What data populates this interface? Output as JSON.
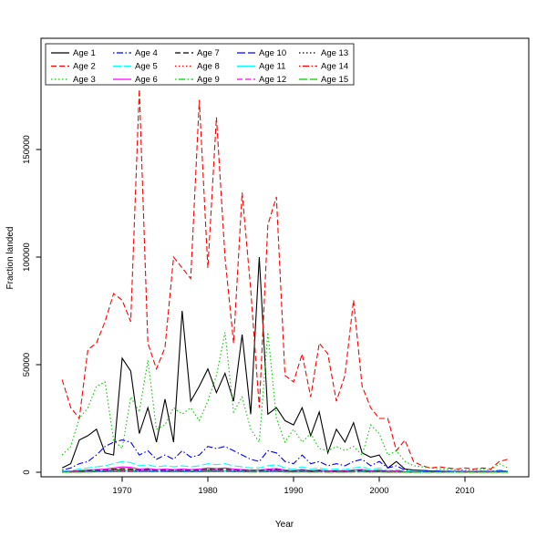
{
  "chart_data": {
    "type": "line",
    "xlabel": "Year",
    "ylabel": "Fraction landed",
    "xticks": [
      1970,
      1980,
      1990,
      2000,
      2010
    ],
    "yticks": [
      0,
      50000,
      100000,
      150000
    ],
    "xlim": [
      1961,
      2017
    ],
    "ylim": [
      0,
      201000
    ],
    "grid": false,
    "legend_position": "top-left",
    "x": [
      1963,
      1964,
      1965,
      1966,
      1967,
      1968,
      1969,
      1970,
      1971,
      1972,
      1973,
      1974,
      1975,
      1976,
      1977,
      1978,
      1979,
      1980,
      1981,
      1982,
      1983,
      1984,
      1985,
      1986,
      1987,
      1988,
      1989,
      1990,
      1991,
      1992,
      1993,
      1994,
      1995,
      1996,
      1997,
      1998,
      1999,
      2000,
      2001,
      2002,
      2003,
      2004,
      2005,
      2006,
      2007,
      2008,
      2009,
      2010,
      2011,
      2012,
      2013,
      2014,
      2015
    ],
    "series": [
      {
        "name": "Age 1",
        "color": "#000000",
        "dash": "",
        "values": [
          2000,
          4000,
          15000,
          17000,
          20000,
          9000,
          8000,
          53000,
          47000,
          18000,
          30000,
          14000,
          34000,
          14000,
          75000,
          33000,
          40000,
          48000,
          37000,
          46000,
          33000,
          64000,
          27000,
          100000,
          27000,
          30000,
          24000,
          22000,
          30000,
          17000,
          28000,
          9000,
          20000,
          14000,
          23000,
          9000,
          7000,
          8000,
          2000,
          5000,
          1500,
          1000,
          800,
          600,
          500,
          400,
          400,
          300,
          300,
          400,
          300,
          500,
          400
        ]
      },
      {
        "name": "Age 2",
        "color": "#FF0000",
        "dash": "6,3",
        "values": [
          43000,
          30000,
          25000,
          57000,
          60000,
          70000,
          83000,
          80000,
          70000,
          178000,
          60000,
          48000,
          58000,
          100000,
          95000,
          90000,
          173000,
          95000,
          165000,
          100000,
          60000,
          130000,
          85000,
          30000,
          115000,
          128000,
          45000,
          42000,
          55000,
          35000,
          60000,
          55000,
          33000,
          45000,
          80000,
          40000,
          30000,
          25000,
          25000,
          10000,
          15000,
          5000,
          3000,
          2000,
          2500,
          2000,
          1500,
          2000,
          1500,
          2000,
          1500,
          5000,
          6000
        ]
      },
      {
        "name": "Age 3",
        "color": "#00CD00",
        "dash": "1.5,2.5",
        "values": [
          8000,
          12000,
          25000,
          30000,
          40000,
          42000,
          15000,
          11000,
          35000,
          28000,
          52000,
          20000,
          22000,
          30000,
          27000,
          30000,
          24000,
          33000,
          45000,
          65000,
          28000,
          35000,
          20000,
          14000,
          65000,
          25000,
          14000,
          20000,
          14000,
          18000,
          11000,
          10000,
          12000,
          10000,
          12000,
          8000,
          22000,
          18000,
          8000,
          10000,
          5000,
          3000,
          2500,
          2000,
          1500,
          1500,
          1200,
          1000,
          1000,
          1500,
          1000,
          4000,
          2000
        ]
      },
      {
        "name": "Age 4",
        "color": "#0000FF",
        "dash": "1.5,2.5,7,2.5",
        "values": [
          1000,
          2000,
          4000,
          5000,
          8000,
          12000,
          14000,
          15000,
          14000,
          8000,
          10000,
          6000,
          8000,
          6000,
          10000,
          7000,
          8000,
          12000,
          11000,
          12000,
          10000,
          8000,
          6000,
          5000,
          10000,
          9000,
          5000,
          4000,
          8000,
          4000,
          5000,
          3000,
          4000,
          3000,
          5000,
          6000,
          3000,
          5000,
          2000,
          3000,
          1000,
          1000,
          800,
          600,
          500,
          500,
          400,
          400,
          300,
          500,
          400,
          800,
          600
        ]
      },
      {
        "name": "Age 5",
        "color": "#00FFFF",
        "dash": "9,3",
        "values": [
          500,
          800,
          1500,
          2000,
          2500,
          3000,
          4000,
          5000,
          4500,
          3000,
          3500,
          2500,
          3000,
          2500,
          3000,
          2500,
          3000,
          4000,
          3500,
          4000,
          3000,
          2500,
          2000,
          2000,
          3000,
          3500,
          2000,
          1500,
          2500,
          1500,
          2000,
          1200,
          1500,
          1200,
          2000,
          2500,
          1200,
          2000,
          800,
          1200,
          500,
          400,
          300,
          300,
          250,
          250,
          200,
          200,
          150,
          250,
          200,
          400,
          300
        ]
      },
      {
        "name": "Age 6",
        "color": "#FF00FF",
        "dash": "",
        "values": [
          250,
          400,
          750,
          1000,
          1250,
          1500,
          2000,
          2500,
          2250,
          1500,
          1750,
          1250,
          1500,
          1250,
          1500,
          1250,
          1500,
          2000,
          1750,
          2000,
          1500,
          1250,
          1000,
          1000,
          1500,
          1750,
          1000,
          750,
          1250,
          750,
          1000,
          600,
          750,
          600,
          1000,
          1250,
          600,
          1000,
          400,
          600,
          250,
          200,
          150,
          150,
          130,
          130,
          100,
          100,
          80,
          130,
          100,
          200,
          150
        ]
      },
      {
        "name": "Age 7",
        "color": "#000000",
        "dash": "6,3",
        "values": [
          180,
          280,
          530,
          700,
          880,
          1050,
          1400,
          1750,
          1580,
          1050,
          1230,
          880,
          1050,
          880,
          1050,
          880,
          1050,
          1400,
          1230,
          1400,
          1050,
          880,
          700,
          700,
          1050,
          1230,
          700,
          530,
          880,
          530,
          700,
          420,
          530,
          420,
          700,
          880,
          420,
          700,
          280,
          420,
          180,
          140,
          110,
          110,
          90,
          90,
          70,
          70,
          50,
          90,
          70,
          140,
          110
        ]
      },
      {
        "name": "Age 8",
        "color": "#FF0000",
        "dash": "1.5,2.5",
        "values": [
          150,
          240,
          450,
          600,
          750,
          900,
          1200,
          1500,
          1350,
          900,
          1050,
          750,
          900,
          750,
          900,
          750,
          900,
          1200,
          1050,
          1200,
          900,
          750,
          600,
          600,
          900,
          1050,
          600,
          450,
          750,
          450,
          600,
          360,
          450,
          360,
          600,
          750,
          360,
          600,
          240,
          360,
          150,
          120,
          90,
          90,
          80,
          80,
          60,
          60,
          50,
          80,
          60,
          120,
          90
        ]
      },
      {
        "name": "Age 9",
        "color": "#00CD00",
        "dash": "1.5,2.5,7,2.5",
        "values": [
          130,
          200,
          380,
          500,
          630,
          750,
          1000,
          1250,
          1130,
          750,
          880,
          630,
          750,
          630,
          750,
          630,
          750,
          1000,
          880,
          1000,
          750,
          630,
          500,
          500,
          750,
          880,
          500,
          380,
          630,
          380,
          500,
          300,
          380,
          300,
          500,
          630,
          300,
          500,
          200,
          300,
          130,
          100,
          80,
          80,
          60,
          60,
          50,
          50,
          40,
          60,
          50,
          100,
          80
        ]
      },
      {
        "name": "Age 10",
        "color": "#0000FF",
        "dash": "9,3",
        "values": [
          100,
          160,
          300,
          400,
          500,
          600,
          800,
          1000,
          900,
          600,
          700,
          500,
          600,
          500,
          600,
          500,
          600,
          800,
          700,
          800,
          600,
          500,
          400,
          400,
          600,
          700,
          400,
          300,
          500,
          300,
          400,
          240,
          300,
          240,
          400,
          500,
          240,
          400,
          160,
          240,
          100,
          80,
          60,
          60,
          50,
          50,
          40,
          40,
          30,
          50,
          40,
          80,
          60
        ]
      },
      {
        "name": "Age 11",
        "color": "#00FFFF",
        "dash": "",
        "values": [
          80,
          120,
          230,
          300,
          380,
          450,
          600,
          750,
          680,
          450,
          530,
          380,
          450,
          380,
          450,
          380,
          450,
          600,
          530,
          600,
          450,
          380,
          300,
          300,
          450,
          530,
          300,
          230,
          380,
          230,
          300,
          180,
          230,
          180,
          300,
          380,
          180,
          300,
          120,
          180,
          80,
          60,
          50,
          50,
          40,
          40,
          30,
          30,
          20,
          40,
          30,
          60,
          50
        ]
      },
      {
        "name": "Age 12",
        "color": "#FF00FF",
        "dash": "6,3",
        "values": [
          60,
          100,
          180,
          240,
          300,
          360,
          480,
          600,
          540,
          360,
          420,
          300,
          360,
          300,
          360,
          300,
          360,
          480,
          420,
          480,
          360,
          300,
          240,
          240,
          360,
          420,
          240,
          180,
          300,
          180,
          240,
          140,
          180,
          140,
          240,
          300,
          140,
          240,
          100,
          140,
          60,
          50,
          40,
          40,
          30,
          30,
          20,
          20,
          20,
          30,
          20,
          50,
          40
        ]
      },
      {
        "name": "Age 13",
        "color": "#000000",
        "dash": "1.5,2.5",
        "values": [
          50,
          80,
          150,
          200,
          250,
          300,
          400,
          500,
          450,
          300,
          350,
          250,
          300,
          250,
          300,
          250,
          300,
          400,
          350,
          400,
          300,
          250,
          200,
          200,
          300,
          350,
          200,
          150,
          250,
          150,
          200,
          120,
          150,
          120,
          200,
          250,
          120,
          200,
          80,
          120,
          50,
          40,
          30,
          30,
          30,
          30,
          20,
          20,
          20,
          30,
          20,
          40,
          30
        ]
      },
      {
        "name": "Age 14",
        "color": "#FF0000",
        "dash": "1.5,2.5,7,2.5",
        "values": [
          40,
          60,
          120,
          160,
          200,
          240,
          320,
          400,
          360,
          240,
          280,
          200,
          240,
          200,
          240,
          200,
          240,
          320,
          280,
          320,
          240,
          200,
          160,
          160,
          240,
          280,
          160,
          120,
          200,
          120,
          160,
          100,
          120,
          100,
          160,
          200,
          100,
          160,
          60,
          100,
          40,
          30,
          20,
          20,
          20,
          20,
          15,
          15,
          10,
          20,
          15,
          30,
          20
        ]
      },
      {
        "name": "Age 15",
        "color": "#00CD00",
        "dash": "9,3",
        "values": [
          30,
          50,
          90,
          120,
          150,
          180,
          240,
          300,
          270,
          180,
          210,
          150,
          180,
          150,
          180,
          150,
          180,
          240,
          210,
          240,
          180,
          150,
          120,
          120,
          180,
          210,
          120,
          90,
          150,
          90,
          120,
          70,
          90,
          70,
          120,
          150,
          70,
          120,
          50,
          70,
          30,
          25,
          20,
          20,
          15,
          15,
          10,
          10,
          10,
          15,
          10,
          25,
          20
        ]
      }
    ]
  }
}
